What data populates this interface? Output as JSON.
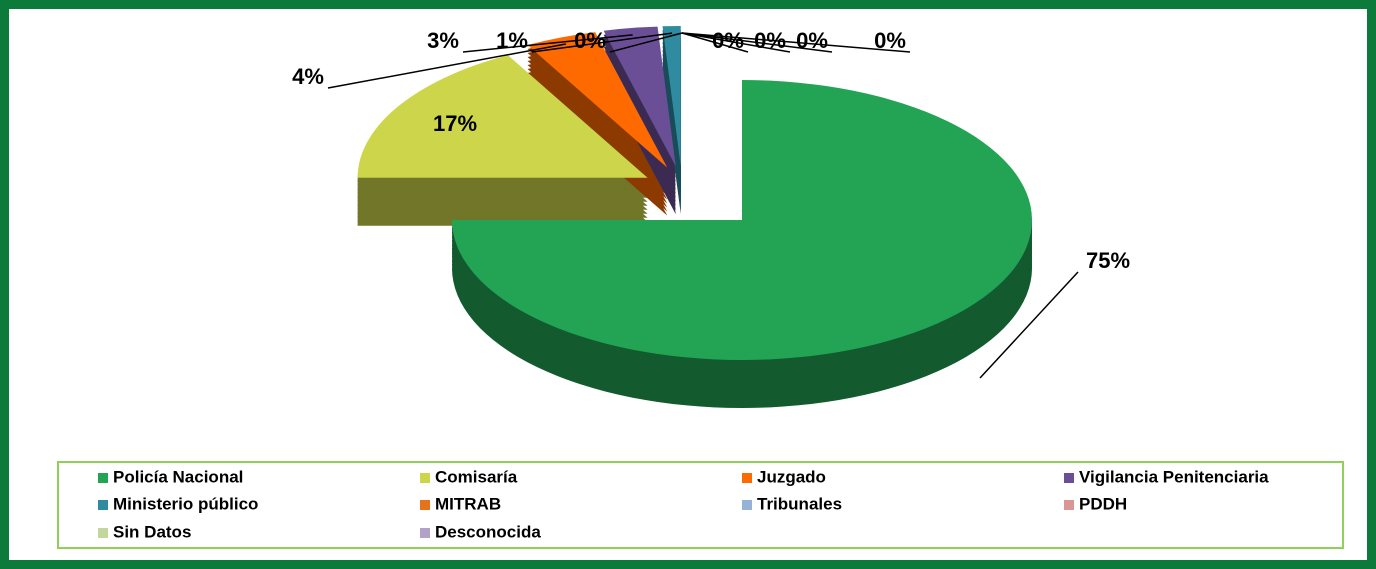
{
  "chart_data": {
    "type": "pie",
    "categories": [
      "Policía Nacional",
      "Comisaría",
      "Juzgado",
      "Vigilancia Penitenciaria",
      "Ministerio público",
      "MITRAB",
      "Tribunales",
      "PDDH",
      "Sin Datos",
      "Desconocida"
    ],
    "values": [
      75,
      17,
      4,
      3,
      1,
      0,
      0,
      0,
      0,
      0
    ],
    "value_labels": [
      "75%",
      "17%",
      "4%",
      "3%",
      "1%",
      "0%",
      "0%",
      "0%",
      "0%",
      "0%"
    ],
    "colors": [
      "#23a455",
      "#cdd64a",
      "#ff6a00",
      "#6b4f96",
      "#2e8ba0",
      "#e4731c",
      "#95b3d7",
      "#d99694",
      "#c3d69b",
      "#b3a2c7"
    ],
    "legend": "bottom"
  }
}
